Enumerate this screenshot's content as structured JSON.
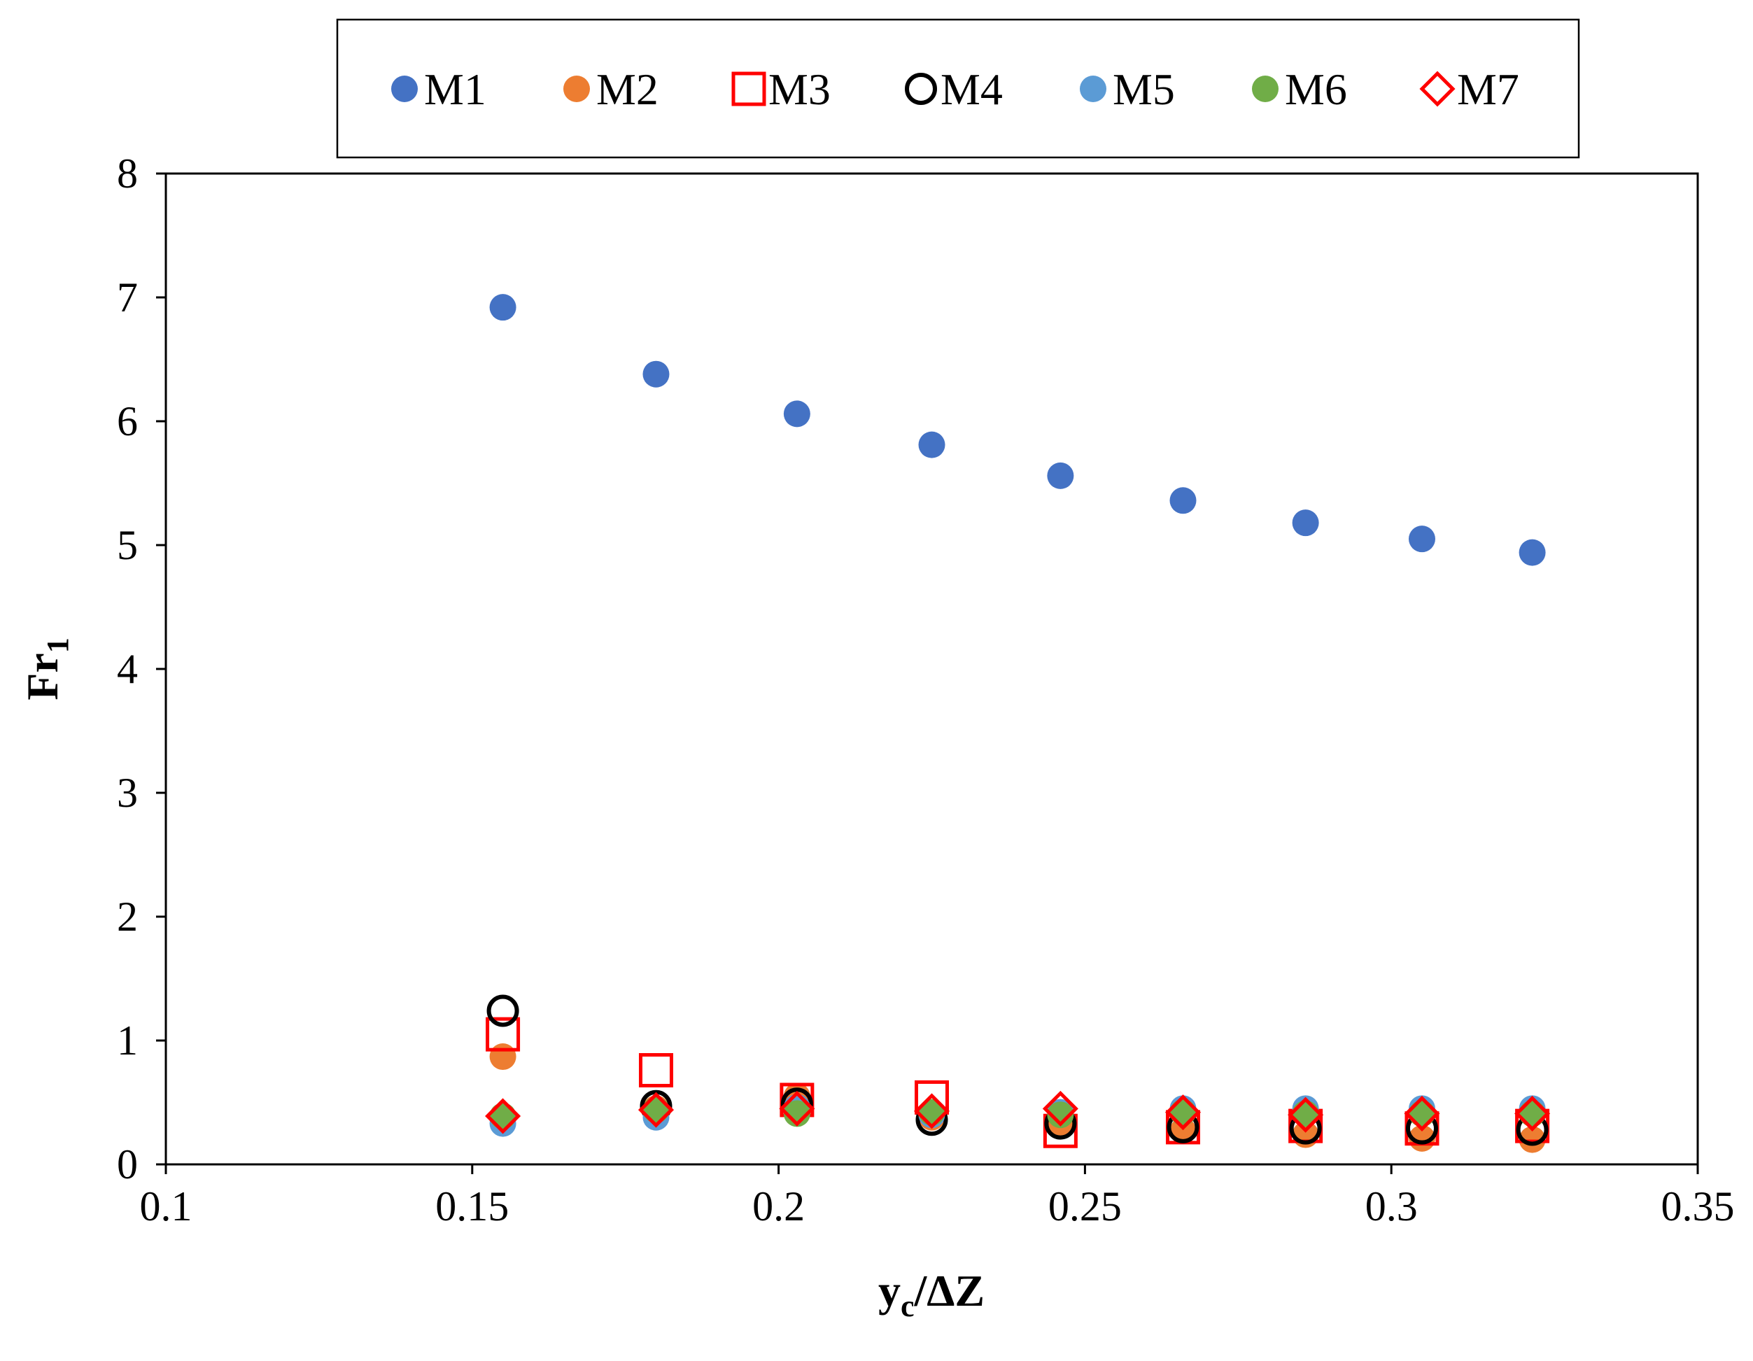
{
  "chart_data": {
    "type": "scatter",
    "title": "",
    "xlabel": "yc/ΔZ",
    "xlabel_main": "y",
    "xlabel_sub": "c",
    "xlabel_rest": "/ΔZ",
    "ylabel": "Fr1",
    "ylabel_main": "Fr",
    "ylabel_sub": "1",
    "xlim": [
      0.1,
      0.35
    ],
    "ylim": [
      0,
      8
    ],
    "xticks": [
      0.1,
      0.15,
      0.2,
      0.25,
      0.3,
      0.35
    ],
    "xtick_labels": [
      "0.1",
      "0.15",
      "0.2",
      "0.25",
      "0.3",
      "0.35"
    ],
    "yticks": [
      0,
      1,
      2,
      3,
      4,
      5,
      6,
      7,
      8
    ],
    "ytick_labels": [
      "0",
      "1",
      "2",
      "3",
      "4",
      "5",
      "6",
      "7",
      "8"
    ],
    "grid": false,
    "legend_position": "top",
    "x": [
      0.155,
      0.18,
      0.203,
      0.225,
      0.246,
      0.266,
      0.286,
      0.305,
      0.323
    ],
    "series": [
      {
        "name": "M1",
        "marker": "filled-circle",
        "color": "#4472C4",
        "values": [
          6.92,
          6.38,
          6.06,
          5.81,
          5.56,
          5.36,
          5.18,
          5.05,
          4.94
        ]
      },
      {
        "name": "M2",
        "marker": "filled-circle",
        "color": "#ED7D31",
        "values": [
          0.87,
          0.45,
          0.55,
          0.38,
          0.32,
          0.27,
          0.24,
          0.21,
          0.2
        ]
      },
      {
        "name": "M3",
        "marker": "open-square",
        "color": "#FF0000",
        "values": [
          1.05,
          0.76,
          0.52,
          0.54,
          0.27,
          0.3,
          0.31,
          0.29,
          0.31
        ]
      },
      {
        "name": "M4",
        "marker": "open-circle",
        "color": "#000000",
        "values": [
          1.24,
          0.47,
          0.49,
          0.36,
          0.33,
          0.3,
          0.29,
          0.29,
          0.28
        ]
      },
      {
        "name": "M5",
        "marker": "filled-circle",
        "color": "#5B9BD5",
        "values": [
          0.33,
          0.38,
          0.46,
          0.4,
          0.42,
          0.45,
          0.45,
          0.45,
          0.45
        ]
      },
      {
        "name": "M6",
        "marker": "filled-circle",
        "color": "#70AD47",
        "values": [
          0.39,
          0.44,
          0.41,
          0.42,
          0.4,
          0.42,
          0.41,
          0.41,
          0.41
        ]
      },
      {
        "name": "M7",
        "marker": "open-diamond",
        "color": "#FF0000",
        "values": [
          0.39,
          0.44,
          0.45,
          0.43,
          0.45,
          0.42,
          0.4,
          0.41,
          0.41
        ]
      }
    ]
  }
}
